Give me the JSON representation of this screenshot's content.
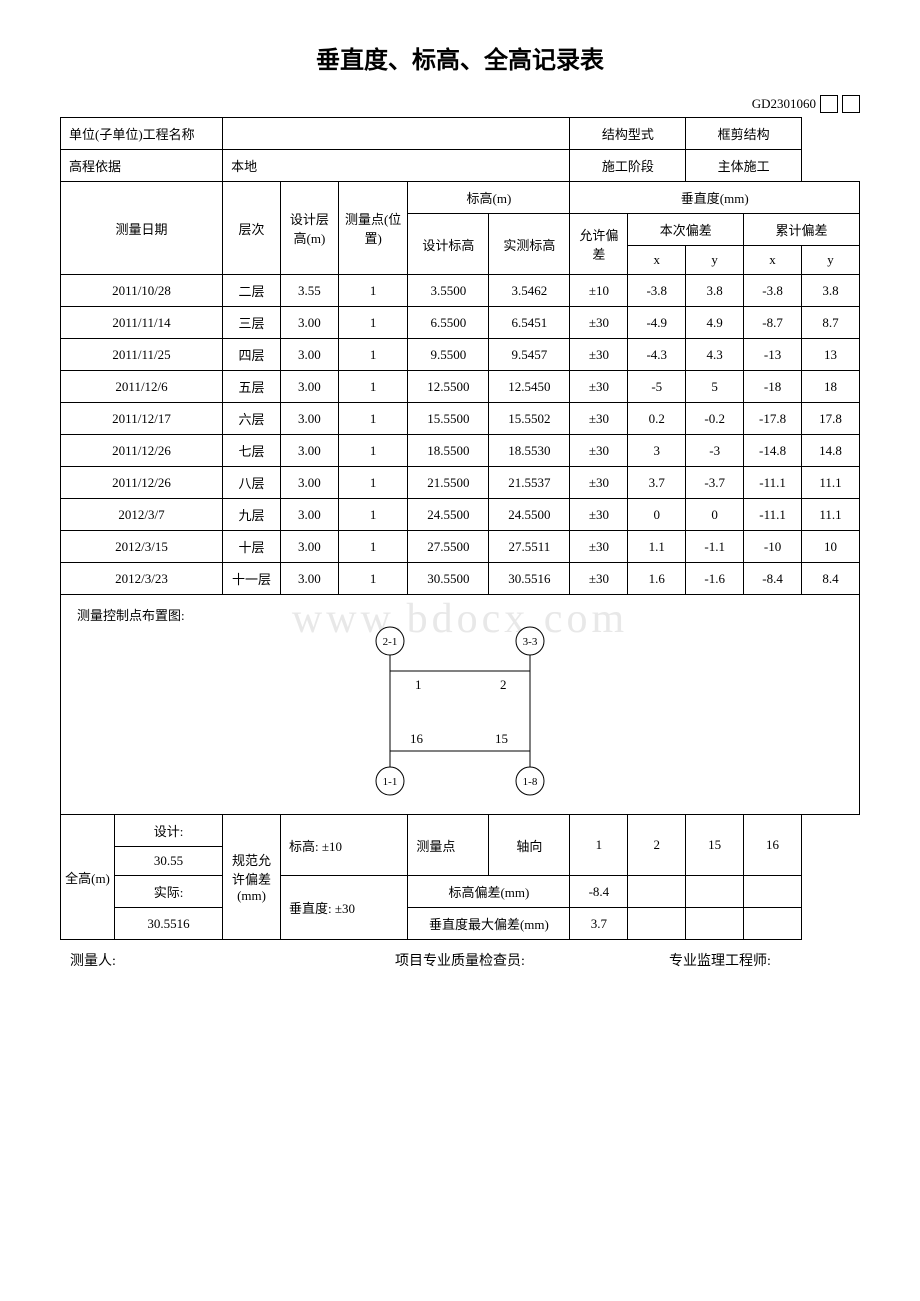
{
  "title": "垂直度、标高、全高记录表",
  "doc_code": "GD2301060",
  "header": {
    "unit_label": "单位(子单位)工程名称",
    "unit_value": "",
    "structure_label": "结构型式",
    "structure_value": "框剪结构",
    "elevation_basis_label": "高程依据",
    "elevation_basis_value": "本地",
    "phase_label": "施工阶段",
    "phase_value": "主体施工"
  },
  "columns": {
    "date": "测量日期",
    "floor": "层次",
    "design_height": "设计层高(m)",
    "measure_point": "测量点(位置)",
    "elevation": "标高(m)",
    "design_elev": "设计标高",
    "actual_elev": "实测标高",
    "verticality": "垂直度(mm)",
    "tolerance": "允许偏差",
    "this_dev": "本次偏差",
    "cum_dev": "累计偏差",
    "x": "x",
    "y": "y"
  },
  "rows": [
    {
      "date": "2011/10/28",
      "floor": "二层",
      "dh": "3.55",
      "mp": "1",
      "de": "3.5500",
      "ae": "3.5462",
      "tol": "±10",
      "tx": "-3.8",
      "ty": "3.8",
      "cx": "-3.8",
      "cy": "3.8"
    },
    {
      "date": "2011/11/14",
      "floor": "三层",
      "dh": "3.00",
      "mp": "1",
      "de": "6.5500",
      "ae": "6.5451",
      "tol": "±30",
      "tx": "-4.9",
      "ty": "4.9",
      "cx": "-8.7",
      "cy": "8.7"
    },
    {
      "date": "2011/11/25",
      "floor": "四层",
      "dh": "3.00",
      "mp": "1",
      "de": "9.5500",
      "ae": "9.5457",
      "tol": "±30",
      "tx": "-4.3",
      "ty": "4.3",
      "cx": "-13",
      "cy": "13"
    },
    {
      "date": "2011/12/6",
      "floor": "五层",
      "dh": "3.00",
      "mp": "1",
      "de": "12.5500",
      "ae": "12.5450",
      "tol": "±30",
      "tx": "-5",
      "ty": "5",
      "cx": "-18",
      "cy": "18"
    },
    {
      "date": "2011/12/17",
      "floor": "六层",
      "dh": "3.00",
      "mp": "1",
      "de": "15.5500",
      "ae": "15.5502",
      "tol": "±30",
      "tx": "0.2",
      "ty": "-0.2",
      "cx": "-17.8",
      "cy": "17.8"
    },
    {
      "date": "2011/12/26",
      "floor": "七层",
      "dh": "3.00",
      "mp": "1",
      "de": "18.5500",
      "ae": "18.5530",
      "tol": "±30",
      "tx": "3",
      "ty": "-3",
      "cx": "-14.8",
      "cy": "14.8"
    },
    {
      "date": "2011/12/26",
      "floor": "八层",
      "dh": "3.00",
      "mp": "1",
      "de": "21.5500",
      "ae": "21.5537",
      "tol": "±30",
      "tx": "3.7",
      "ty": "-3.7",
      "cx": "-11.1",
      "cy": "11.1"
    },
    {
      "date": "2012/3/7",
      "floor": "九层",
      "dh": "3.00",
      "mp": "1",
      "de": "24.5500",
      "ae": "24.5500",
      "tol": "±30",
      "tx": "0",
      "ty": "0",
      "cx": "-11.1",
      "cy": "11.1"
    },
    {
      "date": "2012/3/15",
      "floor": "十层",
      "dh": "3.00",
      "mp": "1",
      "de": "27.5500",
      "ae": "27.5511",
      "tol": "±30",
      "tx": "1.1",
      "ty": "-1.1",
      "cx": "-10",
      "cy": "10"
    },
    {
      "date": "2012/3/23",
      "floor": "十一层",
      "dh": "3.00",
      "mp": "1",
      "de": "30.5500",
      "ae": "30.5516",
      "tol": "±30",
      "tx": "1.6",
      "ty": "-1.6",
      "cx": "-8.4",
      "cy": "8.4"
    }
  ],
  "diagram": {
    "label": "测量控制点布置图:",
    "nodes": {
      "tl": "2-1",
      "tr": "3-3",
      "bl": "1-1",
      "br": "1-8",
      "inner_tl": "1",
      "inner_tr": "2",
      "inner_bl": "16",
      "inner_br": "15"
    }
  },
  "summary": {
    "total_height_label": "全高(m)",
    "design_label": "设计:",
    "design_value": "30.55",
    "actual_label": "实际:",
    "actual_value": "30.5516",
    "spec_dev_label": "规范允许偏差(mm)",
    "elev_label": "标高:",
    "elev_value": "±10",
    "vert_label": "垂直度:",
    "vert_value": "±30",
    "mp_label": "测量点",
    "axis_label": "轴向",
    "axis_values": [
      "1",
      "2",
      "15",
      "16"
    ],
    "elev_dev_label": "标高偏差(mm)",
    "elev_dev_values": [
      "-8.4",
      "",
      "",
      ""
    ],
    "max_vert_label": "垂直度最大偏差(mm)",
    "max_vert_values": [
      "3.7",
      "",
      "",
      ""
    ]
  },
  "footer": {
    "measurer": "测量人:",
    "inspector": "项目专业质量检查员:",
    "supervisor": "专业监理工程师:"
  },
  "watermark": "www.bdocx.com"
}
